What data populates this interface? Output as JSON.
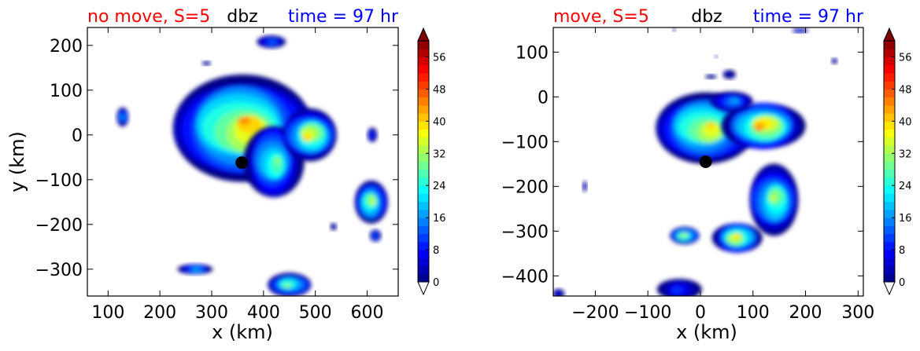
{
  "chart_data": [
    {
      "type": "contour",
      "title_left": "no move, S=5",
      "title_center": "dbz",
      "title_right": "time = 97 hr",
      "title_left_color": "#ff0000",
      "title_right_color": "#0000ff",
      "xlabel": "x (km)",
      "ylabel": "y (km)",
      "xlim": [
        60,
        660
      ],
      "ylim": [
        -360,
        240
      ],
      "xticks": [
        100,
        200,
        300,
        400,
        500,
        600
      ],
      "yticks": [
        200,
        100,
        0,
        -100,
        -200,
        -300
      ],
      "xtick_labels": [
        "100",
        "200",
        "300",
        "400",
        "500",
        "600"
      ],
      "ytick_labels": [
        "200",
        "100",
        "0",
        "−100",
        "−200",
        "−300"
      ],
      "center_marker": {
        "x": 358,
        "y": -62
      },
      "colorbar": {
        "min": 0,
        "max": 60,
        "ticks": [
          0,
          8,
          16,
          24,
          32,
          40,
          48,
          56
        ]
      },
      "echoes": [
        {
          "x": 360,
          "y": 15,
          "rx": 135,
          "ry": 120,
          "peak": 48
        },
        {
          "x": 420,
          "y": -60,
          "rx": 55,
          "ry": 85,
          "peak": 34
        },
        {
          "x": 490,
          "y": 0,
          "rx": 55,
          "ry": 55,
          "peak": 46
        },
        {
          "x": 415,
          "y": 208,
          "rx": 28,
          "ry": 14,
          "peak": 18
        },
        {
          "x": 290,
          "y": 160,
          "rx": 8,
          "ry": 5,
          "peak": 8
        },
        {
          "x": 128,
          "y": 40,
          "rx": 12,
          "ry": 20,
          "peak": 22
        },
        {
          "x": 608,
          "y": -150,
          "rx": 32,
          "ry": 48,
          "peak": 40
        },
        {
          "x": 616,
          "y": -225,
          "rx": 10,
          "ry": 14,
          "peak": 18
        },
        {
          "x": 610,
          "y": 0,
          "rx": 10,
          "ry": 15,
          "peak": 14
        },
        {
          "x": 535,
          "y": -205,
          "rx": 6,
          "ry": 8,
          "peak": 8
        },
        {
          "x": 268,
          "y": -300,
          "rx": 32,
          "ry": 12,
          "peak": 24
        },
        {
          "x": 450,
          "y": -335,
          "rx": 45,
          "ry": 25,
          "peak": 36
        }
      ]
    },
    {
      "type": "contour",
      "title_left": "move, S=5",
      "title_center": "dbz",
      "title_right": "time = 97 hr",
      "title_left_color": "#ff0000",
      "title_right_color": "#0000ff",
      "xlabel": "x (km)",
      "ylabel": "",
      "xlim": [
        -280,
        310
      ],
      "ylim": [
        -445,
        155
      ],
      "xticks": [
        -200,
        -100,
        0,
        100,
        200,
        300
      ],
      "yticks": [
        100,
        0,
        -100,
        -200,
        -300,
        -400
      ],
      "xtick_labels": [
        "−200",
        "−100",
        "0",
        "100",
        "200",
        "300"
      ],
      "ytick_labels": [
        "100",
        "0",
        "−100",
        "−200",
        "−300",
        "−400"
      ],
      "center_marker": {
        "x": 10,
        "y": -145
      },
      "colorbar": {
        "min": 0,
        "max": 60,
        "ticks": [
          0,
          8,
          16,
          24,
          32,
          40,
          48,
          56
        ]
      },
      "echoes": [
        {
          "x": 10,
          "y": -70,
          "rx": 95,
          "ry": 80,
          "peak": 44
        },
        {
          "x": 120,
          "y": -65,
          "rx": 75,
          "ry": 55,
          "peak": 50
        },
        {
          "x": 140,
          "y": -230,
          "rx": 50,
          "ry": 75,
          "peak": 38
        },
        {
          "x": 60,
          "y": -10,
          "rx": 40,
          "ry": 22,
          "peak": 22
        },
        {
          "x": 70,
          "y": -315,
          "rx": 45,
          "ry": 35,
          "peak": 46
        },
        {
          "x": -30,
          "y": -310,
          "rx": 30,
          "ry": 18,
          "peak": 40
        },
        {
          "x": -220,
          "y": -200,
          "rx": 4,
          "ry": 12,
          "peak": 10
        },
        {
          "x": -40,
          "y": -430,
          "rx": 40,
          "ry": 25,
          "peak": 14
        },
        {
          "x": -270,
          "y": -440,
          "rx": 12,
          "ry": 10,
          "peak": 10
        },
        {
          "x": 55,
          "y": 50,
          "rx": 12,
          "ry": 10,
          "peak": 8
        },
        {
          "x": 20,
          "y": 45,
          "rx": 10,
          "ry": 5,
          "peak": 6
        },
        {
          "x": 255,
          "y": 80,
          "rx": 6,
          "ry": 6,
          "peak": 8
        },
        {
          "x": 190,
          "y": 148,
          "rx": 15,
          "ry": 5,
          "peak": 14
        },
        {
          "x": -50,
          "y": 150,
          "rx": 3,
          "ry": 4,
          "peak": 6
        },
        {
          "x": 30,
          "y": 90,
          "rx": 3,
          "ry": 3,
          "peak": 6
        }
      ]
    }
  ]
}
